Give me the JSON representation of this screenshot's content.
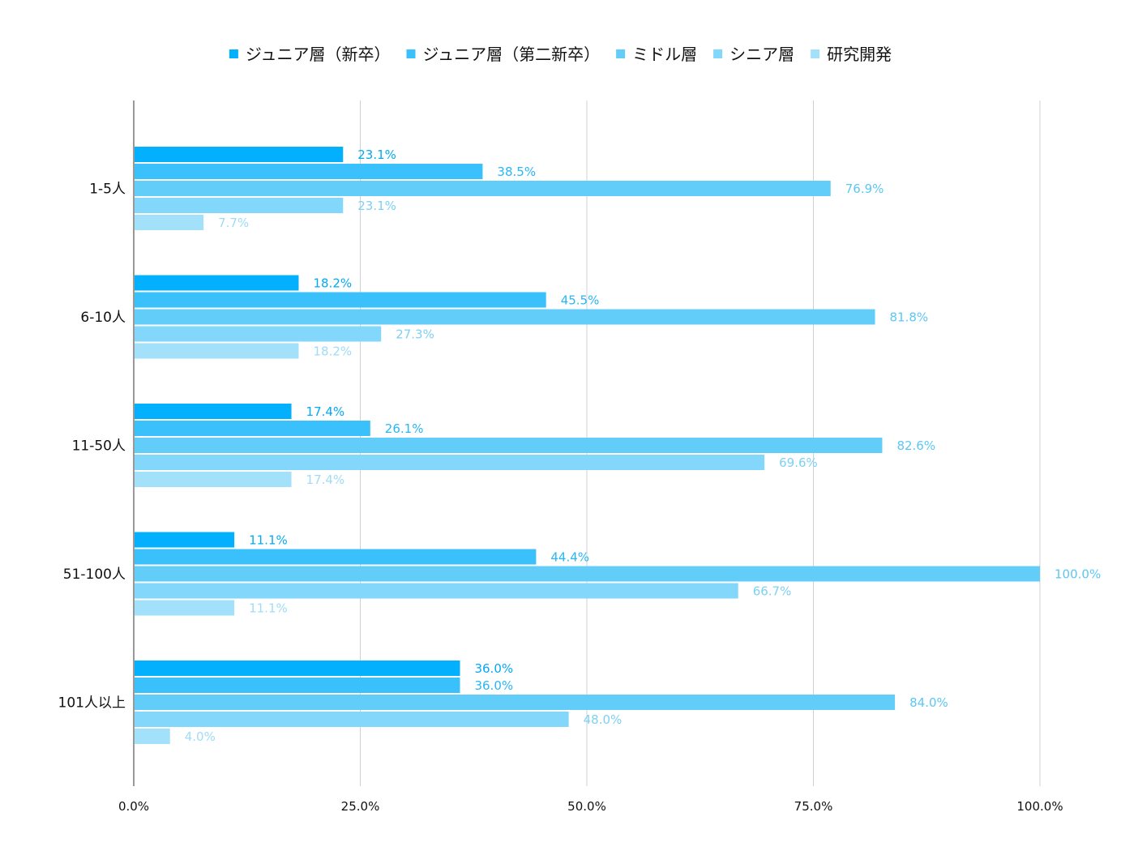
{
  "chart_data": {
    "type": "bar",
    "orientation": "horizontal",
    "title": "",
    "xlabel": "",
    "ylabel": "",
    "xlim": [
      0,
      100
    ],
    "x_ticks": [
      "0.0%",
      "25.0%",
      "50.0%",
      "75.0%",
      "100.0%"
    ],
    "grid": "vertical",
    "legend_position": "top",
    "categories": [
      "1-5人",
      "6-10人",
      "11-50人",
      "51-100人",
      "101人以上"
    ],
    "series": [
      {
        "name": "ジュニア層（新卒）",
        "color": "#03b0fd",
        "label_color": "#03a9f4",
        "values": [
          23.1,
          18.2,
          17.4,
          11.1,
          36.0
        ],
        "labels": [
          "23.1%",
          "18.2%",
          "17.4%",
          "11.1%",
          "36.0%"
        ]
      },
      {
        "name": "ジュニア層（第二新卒）",
        "color": "#3ac0fb",
        "label_color": "#29b6f6",
        "values": [
          38.5,
          45.5,
          26.1,
          44.4,
          36.0
        ],
        "labels": [
          "38.5%",
          "45.5%",
          "26.1%",
          "44.4%",
          "36.0%"
        ]
      },
      {
        "name": "ミドル層",
        "color": "#63cdfa",
        "label_color": "#5bc7f3",
        "values": [
          76.9,
          81.8,
          82.6,
          100.0,
          84.0
        ],
        "labels": [
          "76.9%",
          "81.8%",
          "82.6%",
          "100.0%",
          "84.0%"
        ]
      },
      {
        "name": "シニア層",
        "color": "#83d7fb",
        "label_color": "#7dd1f3",
        "values": [
          23.1,
          27.3,
          69.6,
          66.7,
          48.0
        ],
        "labels": [
          "23.1%",
          "27.3%",
          "69.6%",
          "66.7%",
          "48.0%"
        ]
      },
      {
        "name": "研究開発",
        "color": "#a3e1fa",
        "label_color": "#9fdcf5",
        "values": [
          7.7,
          18.2,
          17.4,
          11.1,
          4.0
        ],
        "labels": [
          "7.7%",
          "18.2%",
          "17.4%",
          "11.1%",
          "4.0%"
        ]
      }
    ]
  }
}
